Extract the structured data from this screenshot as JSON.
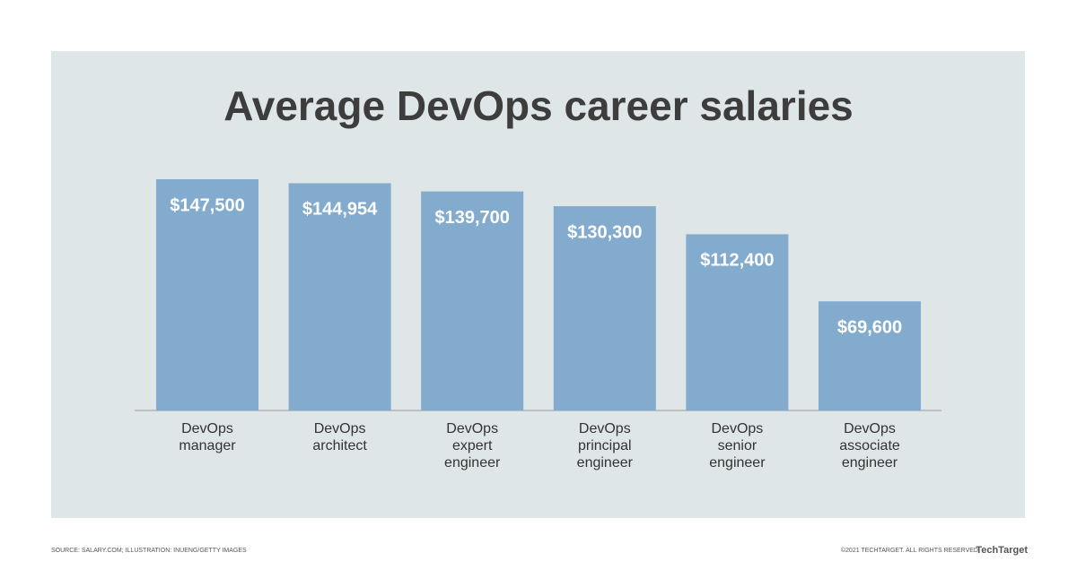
{
  "chart_data": {
    "type": "bar",
    "title": "Average DevOps career salaries",
    "categories": [
      "DevOps manager",
      "DevOps architect",
      "DevOps expert engineer",
      "DevOps principal engineer",
      "DevOps senior engineer",
      "DevOps associate engineer"
    ],
    "values": [
      147500,
      144954,
      139700,
      130300,
      112400,
      69600
    ],
    "value_labels": [
      "$147,500",
      "$144,954",
      "$139,700",
      "$130,300",
      "$112,400",
      "$69,600"
    ],
    "color": "#82abce"
  },
  "footer": {
    "source": "SOURCE: SALARY.COM; ILLUSTRATION: INUENG/GETTY IMAGES",
    "copyright": "©2021 TECHTARGET. ALL RIGHTS RESERVED",
    "logo": "TechTarget"
  }
}
